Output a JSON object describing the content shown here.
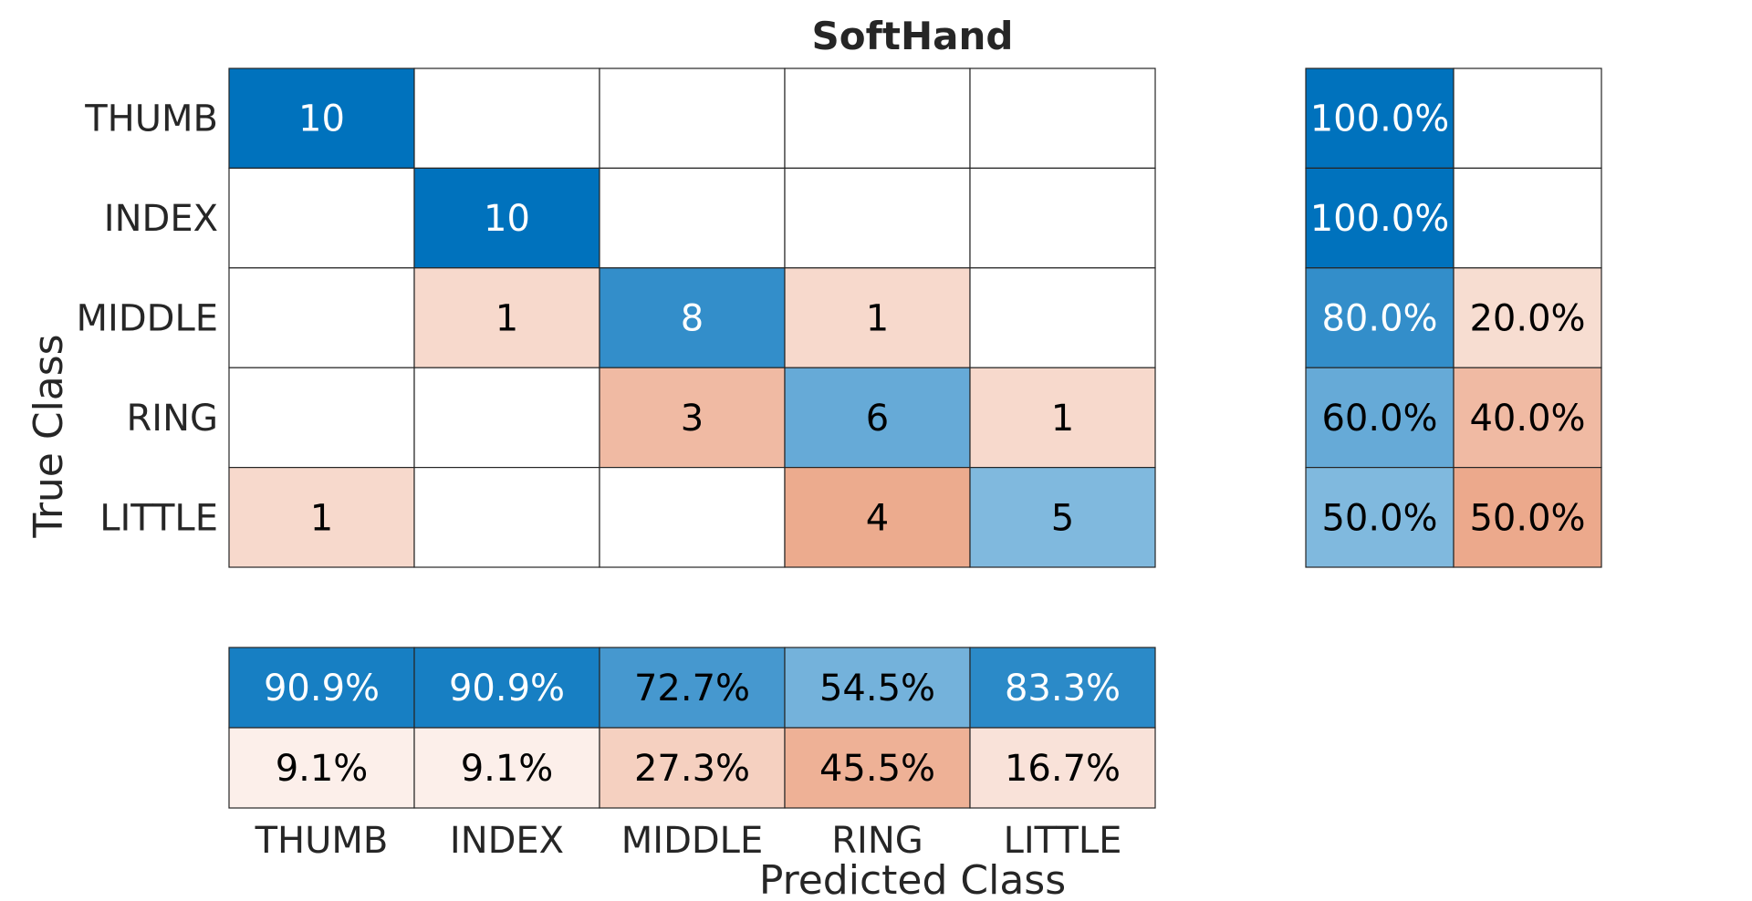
{
  "chart_data": {
    "type": "heatmap",
    "title": "SoftHand",
    "xlabel": "Predicted Class",
    "ylabel": "True Class",
    "classes": [
      "THUMB",
      "INDEX",
      "MIDDLE",
      "RING",
      "LITTLE"
    ],
    "matrix": [
      [
        10,
        0,
        0,
        0,
        0
      ],
      [
        0,
        10,
        0,
        0,
        0
      ],
      [
        0,
        1,
        8,
        1,
        0
      ],
      [
        0,
        0,
        3,
        6,
        1
      ],
      [
        1,
        0,
        0,
        4,
        5
      ]
    ],
    "row_summary": [
      [
        "100.0%",
        ""
      ],
      [
        "100.0%",
        ""
      ],
      [
        "80.0%",
        "20.0%"
      ],
      [
        "60.0%",
        "40.0%"
      ],
      [
        "50.0%",
        "50.0%"
      ]
    ],
    "row_summary_values": [
      [
        1.0,
        0.0
      ],
      [
        1.0,
        0.0
      ],
      [
        0.8,
        0.2
      ],
      [
        0.6,
        0.4
      ],
      [
        0.5,
        0.5
      ]
    ],
    "column_summary": [
      [
        "90.9%",
        "90.9%",
        "72.7%",
        "54.5%",
        "83.3%"
      ],
      [
        "9.1%",
        "9.1%",
        "27.3%",
        "45.5%",
        "16.7%"
      ]
    ],
    "column_summary_values": [
      [
        0.909,
        0.909,
        0.727,
        0.545,
        0.833
      ],
      [
        0.091,
        0.091,
        0.273,
        0.455,
        0.167
      ]
    ],
    "colors": {
      "correct": "#0072bd",
      "incorrect": "#d95319",
      "background": "#ffffff",
      "grid": "#262626",
      "light_text": "#ffffff",
      "dark_text": "#000000"
    }
  }
}
